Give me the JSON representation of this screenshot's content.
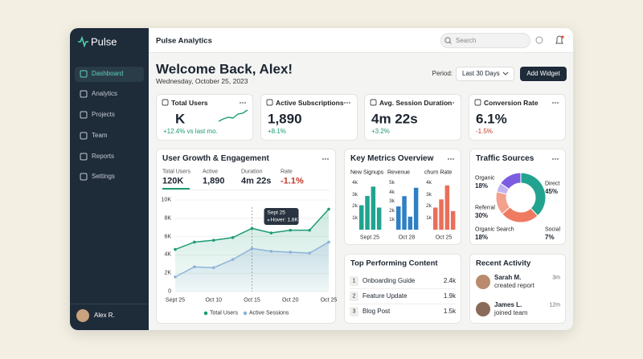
{
  "sidebar": {
    "brand": "Pulse",
    "nav": [
      "Dashboard",
      "Analytics",
      "Projects",
      "Team",
      "Reports",
      "Settings"
    ],
    "user": "Alex R."
  },
  "header": {
    "title": "Pulse Analytics",
    "search": "Search"
  },
  "welcome": {
    "title": "Welcome Back, Alex!",
    "date": "Wednesday, October 25, 2023",
    "period_label": "Period:",
    "period": "Last 30 Days",
    "button": "Add Widget"
  },
  "kpis": [
    {
      "label": "Total Users",
      "value": "K",
      "change": "+12.4% vs last mo."
    },
    {
      "label": "Active Subscriptions",
      "value": "1,890",
      "change": "+8.1%"
    },
    {
      "label": "Avg. Session Duration",
      "value": "4m 22s",
      "change": "+3.2%"
    },
    {
      "label": "Conversion Rate",
      "value": "6.1%",
      "change": "-1.5%"
    }
  ],
  "growth": {
    "title": "User Growth & Engagement",
    "stats": [
      {
        "label": "Total Users",
        "value": "120K"
      },
      {
        "label": "Active",
        "value": "1,890"
      },
      {
        "label": "Duration",
        "value": "4m 22s"
      },
      {
        "label": "Rate",
        "value": "-1.1%"
      }
    ],
    "chart": {
      "type": "line",
      "categories": [
        "Sept 25",
        null,
        "Oct 10",
        null,
        "Oct 15",
        null,
        "Oct 20",
        null,
        "Oct 25"
      ],
      "series": [
        {
          "name": "Total Users",
          "color": "#1e9c77",
          "values": [
            4600,
            5400,
            5600,
            5900,
            6900,
            6400,
            6700,
            6700,
            9000
          ]
        },
        {
          "name": "Active Sessions",
          "color": "#8fb3d9",
          "values": [
            1600,
            2700,
            2600,
            3500,
            4700,
            4400,
            4300,
            4200,
            5400
          ]
        }
      ],
      "ylim": [
        0,
        10000
      ],
      "yticks": [
        0,
        {
          "value": 2000,
          "label": "2K"
        },
        {
          "value": 4000,
          "label": "4K"
        },
        {
          "value": 6000,
          "label": "6K"
        },
        {
          "value": 8000,
          "label": "8K"
        },
        {
          "value": 10000,
          "label": "10K"
        }
      ],
      "grid": true,
      "annotation": {
        "title": "Sept 25",
        "text": "Hover: 1.8K"
      }
    }
  },
  "key_metrics": {
    "title": "Key Metrics Overview",
    "charts": [
      {
        "type": "bar",
        "title": "New Signups",
        "label": "Sept 25",
        "color": "#20a48f",
        "ylim": [
          0,
          4000
        ],
        "yticks": [
          {
            "value": 1000,
            "label": "1k"
          },
          {
            "value": 2000,
            "label": "2k"
          },
          {
            "value": 3000,
            "label": "3k"
          },
          {
            "value": 4000,
            "label": "4k"
          }
        ],
        "values": [
          2100,
          2900,
          3700,
          1900
        ]
      },
      {
        "type": "bar",
        "title": "Revenue",
        "label": "Oct 28",
        "color": "#2f7fc4",
        "ylim": [
          0,
          5000
        ],
        "yticks": [
          {
            "value": 1000,
            "label": "1k"
          },
          {
            "value": 2000,
            "label": "2k"
          },
          {
            "value": 3000,
            "label": "3k"
          },
          {
            "value": 4000,
            "label": "4k"
          },
          {
            "value": 5000,
            "label": "5k"
          }
        ],
        "values": [
          2500,
          3600,
          1400,
          4500
        ]
      },
      {
        "type": "bar",
        "title": "churn Rate",
        "label": "Oct 25",
        "color": "#ea6f5a",
        "ylim": [
          0,
          4000
        ],
        "yticks": [
          {
            "value": 1000,
            "label": "1k"
          },
          {
            "value": 2000,
            "label": "2k"
          },
          {
            "value": 3000,
            "label": "3k"
          },
          {
            "value": 4000,
            "label": "4k"
          }
        ],
        "values": [
          1900,
          2600,
          3800,
          1600
        ]
      }
    ]
  },
  "traffic": {
    "type": "donut",
    "title": "Traffic Sources",
    "categories": [
      "Organic",
      "Direct",
      "Referral",
      "Organic Search",
      "Social"
    ],
    "values": [
      18,
      45,
      30,
      18,
      7
    ],
    "value_labels": [
      "18%",
      "45%",
      "30%",
      "18%",
      "7%"
    ],
    "colors": [
      "#7c5ce0",
      "#22a38f",
      "#ef7a62",
      "#f3a08c",
      "#c3b3f3"
    ]
  },
  "top_content": {
    "title": "Top Performing Content",
    "items": [
      {
        "rank": "1",
        "title": "Onboarding Guide",
        "views": "2.4k"
      },
      {
        "rank": "2",
        "title": "Feature Update",
        "views": "1.9k"
      },
      {
        "rank": "3",
        "title": "Blog Post",
        "views": "1.5k"
      }
    ]
  },
  "activity": {
    "title": "Recent Activity",
    "items": [
      {
        "name": "Sarah M.",
        "action": "created report",
        "time": "3m"
      },
      {
        "name": "James L.",
        "action": "joined team",
        "time": "12m"
      }
    ]
  }
}
